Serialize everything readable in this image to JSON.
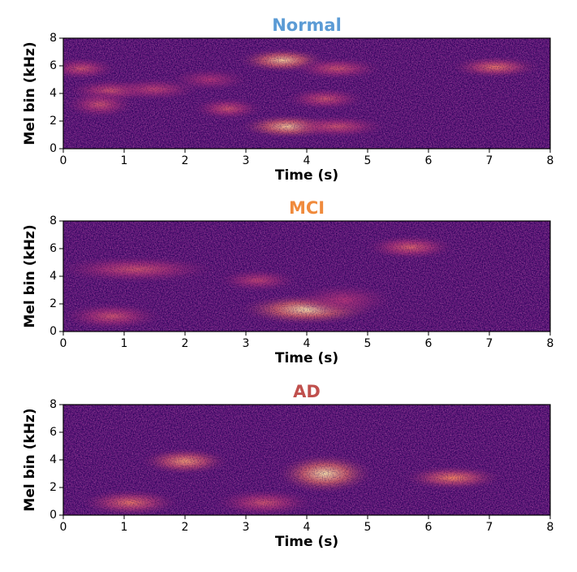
{
  "chart_data": [
    {
      "type": "heatmap",
      "title": "Normal",
      "title_color": "#5b9bd5",
      "xlabel": "Time (s)",
      "ylabel": "Mel bin (kHz)",
      "colormap": "magma",
      "xlim": [
        0,
        8
      ],
      "ylim": [
        0,
        8
      ],
      "xticks": [
        0,
        1,
        2,
        3,
        4,
        5,
        6,
        7,
        8
      ],
      "yticks": [
        0,
        2,
        4,
        6,
        8
      ],
      "x": [
        0.3,
        0.8,
        1.5,
        0.6,
        2.4,
        2.7,
        3.6,
        4.5,
        4.3,
        3.7,
        4.5,
        7.1
      ],
      "y": [
        5.8,
        4.2,
        4.3,
        3.2,
        5.0,
        2.9,
        6.4,
        5.8,
        3.6,
        1.6,
        1.6,
        5.9
      ],
      "values": [
        0.6,
        0.6,
        0.55,
        0.6,
        0.5,
        0.6,
        0.9,
        0.6,
        0.6,
        0.9,
        0.6,
        0.7
      ],
      "x_spread": [
        0.35,
        0.45,
        0.45,
        0.35,
        0.4,
        0.35,
        0.45,
        0.45,
        0.4,
        0.5,
        0.5,
        0.45
      ],
      "y_spread": [
        0.5,
        0.5,
        0.5,
        0.6,
        0.5,
        0.5,
        0.55,
        0.5,
        0.5,
        0.55,
        0.5,
        0.5
      ]
    },
    {
      "type": "heatmap",
      "title": "MCI",
      "title_color": "#f08a3c",
      "xlabel": "Time (s)",
      "ylabel": "Mel bin (kHz)",
      "colormap": "magma",
      "xlim": [
        0,
        8
      ],
      "ylim": [
        0,
        8
      ],
      "xticks": [
        0,
        1,
        2,
        3,
        4,
        5,
        6,
        7,
        8
      ],
      "yticks": [
        0,
        2,
        4,
        6,
        8
      ],
      "x": [
        1.2,
        0.8,
        3.2,
        4.0,
        4.6,
        5.7
      ],
      "y": [
        4.5,
        1.1,
        3.7,
        1.6,
        2.3,
        6.1
      ],
      "values": [
        0.6,
        0.6,
        0.55,
        0.95,
        0.5,
        0.65
      ],
      "x_spread": [
        0.8,
        0.5,
        0.4,
        0.7,
        0.5,
        0.45
      ],
      "y_spread": [
        0.6,
        0.6,
        0.5,
        0.7,
        0.7,
        0.55
      ]
    },
    {
      "type": "heatmap",
      "title": "AD",
      "title_color": "#c0504d",
      "xlabel": "Time (s)",
      "ylabel": "Mel bin (kHz)",
      "colormap": "magma",
      "xlim": [
        0,
        8
      ],
      "ylim": [
        0,
        8
      ],
      "xticks": [
        0,
        1,
        2,
        3,
        4,
        5,
        6,
        7,
        8
      ],
      "yticks": [
        0,
        2,
        4,
        6,
        8
      ],
      "x": [
        1.1,
        2.0,
        3.3,
        4.3,
        6.4
      ],
      "y": [
        0.9,
        3.9,
        0.9,
        3.0,
        2.7
      ],
      "values": [
        0.7,
        0.8,
        0.6,
        0.95,
        0.75
      ],
      "x_spread": [
        0.5,
        0.45,
        0.5,
        0.5,
        0.5
      ],
      "y_spread": [
        0.6,
        0.6,
        0.6,
        0.9,
        0.55
      ]
    }
  ]
}
